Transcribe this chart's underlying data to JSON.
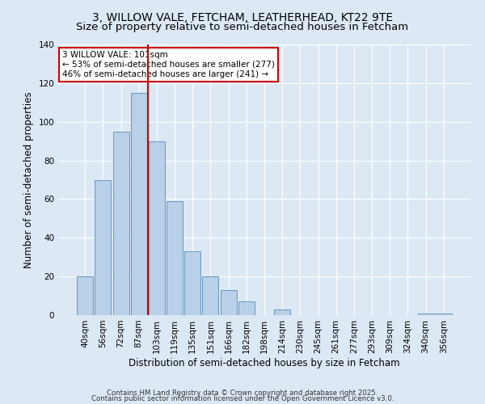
{
  "title": "3, WILLOW VALE, FETCHAM, LEATHERHEAD, KT22 9TE",
  "subtitle": "Size of property relative to semi-detached houses in Fetcham",
  "xlabel": "Distribution of semi-detached houses by size in Fetcham",
  "ylabel": "Number of semi-detached properties",
  "bar_labels": [
    "40sqm",
    "56sqm",
    "72sqm",
    "87sqm",
    "103sqm",
    "119sqm",
    "135sqm",
    "151sqm",
    "166sqm",
    "182sqm",
    "198sqm",
    "214sqm",
    "230sqm",
    "245sqm",
    "261sqm",
    "277sqm",
    "293sqm",
    "309sqm",
    "324sqm",
    "340sqm",
    "356sqm"
  ],
  "bar_values": [
    20,
    70,
    95,
    115,
    90,
    59,
    33,
    20,
    13,
    7,
    0,
    3,
    0,
    0,
    0,
    0,
    0,
    0,
    0,
    1,
    1
  ],
  "bar_color": "#b8d0e8",
  "bar_edge_color": "#5a8ab5",
  "vline_x": 3.5,
  "vline_color": "#cc0000",
  "annotation_text": "3 WILLOW VALE: 101sqm\n← 53% of semi-detached houses are smaller (277)\n46% of semi-detached houses are larger (241) →",
  "annotation_box_color": "#ffffff",
  "annotation_box_edge": "#cc0000",
  "ylim": [
    0,
    140
  ],
  "yticks": [
    0,
    20,
    40,
    60,
    80,
    100,
    120,
    140
  ],
  "background_color": "#dce9f5",
  "footer_line1": "Contains HM Land Registry data © Crown copyright and database right 2025.",
  "footer_line2": "Contains public sector information licensed under the Open Government Licence v3.0.",
  "title_fontsize": 10,
  "axis_label_fontsize": 8.5,
  "tick_fontsize": 7.5,
  "annotation_fontsize": 7.5
}
